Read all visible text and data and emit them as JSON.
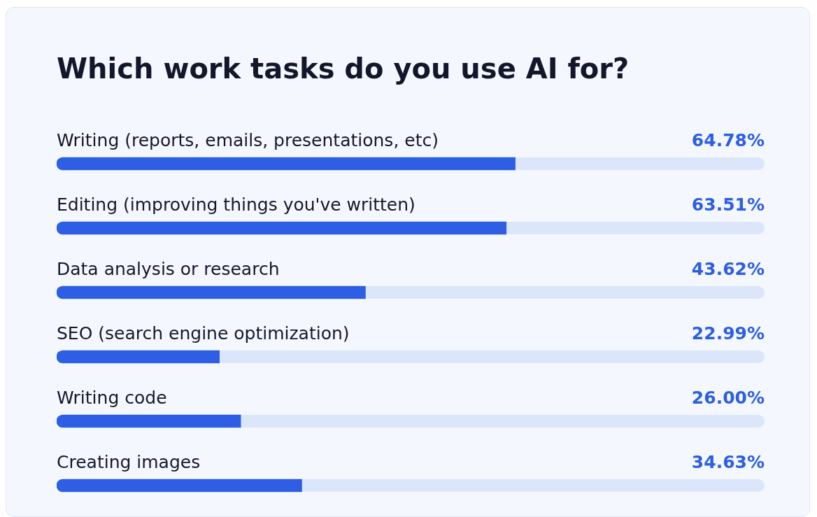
{
  "chart_data": {
    "type": "bar",
    "orientation": "horizontal",
    "title": "Which work tasks do you use AI for?",
    "categories": [
      "Writing (reports, emails, presentations, etc)",
      "Editing (improving things you've written)",
      "Data analysis or research",
      "SEO (search engine optimization)",
      "Writing code",
      "Creating images"
    ],
    "values": [
      64.78,
      63.51,
      43.62,
      22.99,
      26.0,
      34.63
    ],
    "value_labels": [
      "64.78%",
      "63.51%",
      "43.62%",
      "22.99%",
      "26.00%",
      "34.63%"
    ],
    "color": "#2d5ee3",
    "xlim": [
      0,
      100
    ],
    "tick_labels": false,
    "legend": false
  }
}
